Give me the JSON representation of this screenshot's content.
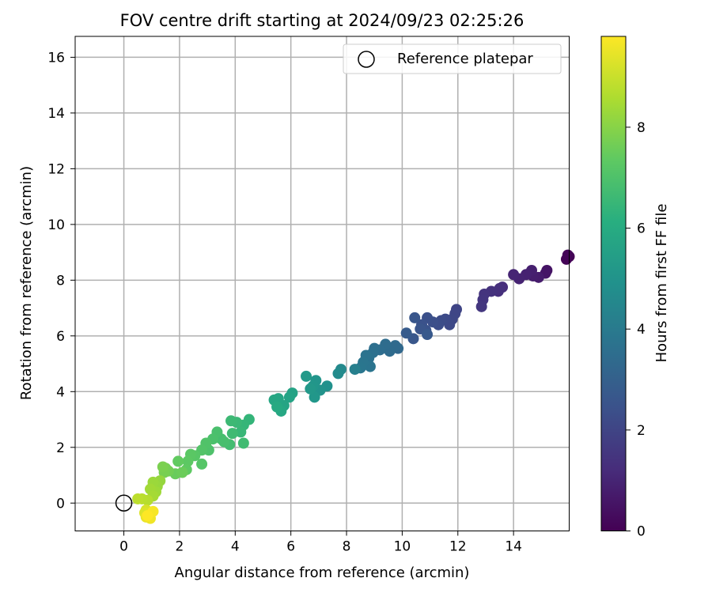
{
  "chart_data": {
    "type": "scatter",
    "title": "FOV centre drift starting at 2024/09/23 02:25:26",
    "xlabel": "Angular distance from reference (arcmin)",
    "ylabel": "Rotation from reference (arcmin)",
    "xlim": [
      -1.75,
      16
    ],
    "ylim": [
      -1,
      16.75
    ],
    "xticks": [
      0,
      2,
      4,
      6,
      8,
      10,
      12,
      14
    ],
    "yticks": [
      0,
      2,
      4,
      6,
      8,
      10,
      12,
      14,
      16
    ],
    "grid": true,
    "legend": {
      "placement": "top-right",
      "entries": [
        {
          "label": "Reference platepar",
          "marker": "open-circle"
        }
      ]
    },
    "reference_point": {
      "x": 0,
      "y": 0
    },
    "colorbar": {
      "label": "Hours from first FF file",
      "range": [
        0,
        9.8
      ],
      "ticks": [
        0,
        2,
        4,
        6,
        8
      ],
      "colormap": "viridis"
    },
    "series": [
      {
        "color_by": "hours",
        "points": [
          [
            16.0,
            8.85,
            0.0
          ],
          [
            15.9,
            8.75,
            0.05
          ],
          [
            15.95,
            8.9,
            0.1
          ],
          [
            15.2,
            8.35,
            0.5
          ],
          [
            15.15,
            8.25,
            0.55
          ],
          [
            14.9,
            8.1,
            0.75
          ],
          [
            14.7,
            8.15,
            0.8
          ],
          [
            14.65,
            8.35,
            0.85
          ],
          [
            14.45,
            8.2,
            0.9
          ],
          [
            14.2,
            8.05,
            0.95
          ],
          [
            14.0,
            8.2,
            1.0
          ],
          [
            13.6,
            7.75,
            1.25
          ],
          [
            13.45,
            7.6,
            1.3
          ],
          [
            13.5,
            7.7,
            1.32
          ],
          [
            13.2,
            7.6,
            1.4
          ],
          [
            12.95,
            7.5,
            1.45
          ],
          [
            12.9,
            7.3,
            1.5
          ],
          [
            12.85,
            7.05,
            1.55
          ],
          [
            11.95,
            6.95,
            2.0
          ],
          [
            11.9,
            6.8,
            2.05
          ],
          [
            11.8,
            6.6,
            2.1
          ],
          [
            11.7,
            6.4,
            2.15
          ],
          [
            11.55,
            6.6,
            2.2
          ],
          [
            11.4,
            6.55,
            2.25
          ],
          [
            11.3,
            6.4,
            2.3
          ],
          [
            11.1,
            6.5,
            2.35
          ],
          [
            10.9,
            6.65,
            2.4
          ],
          [
            10.7,
            6.4,
            2.45
          ],
          [
            10.85,
            6.2,
            2.5
          ],
          [
            10.65,
            6.25,
            2.55
          ],
          [
            10.45,
            6.65,
            2.6
          ],
          [
            10.4,
            5.9,
            2.65
          ],
          [
            10.9,
            6.05,
            2.7
          ],
          [
            10.15,
            6.1,
            2.8
          ],
          [
            9.85,
            5.55,
            3.3
          ],
          [
            9.75,
            5.65,
            3.35
          ],
          [
            9.55,
            5.45,
            3.4
          ],
          [
            9.4,
            5.7,
            3.45
          ],
          [
            9.2,
            5.5,
            3.5
          ],
          [
            9.0,
            5.55,
            3.55
          ],
          [
            8.95,
            5.4,
            3.6
          ],
          [
            8.8,
            5.2,
            3.65
          ],
          [
            8.7,
            5.3,
            3.7
          ],
          [
            8.85,
            4.9,
            3.75
          ],
          [
            8.6,
            5.05,
            3.8
          ],
          [
            8.5,
            4.85,
            3.85
          ],
          [
            8.3,
            4.8,
            4.2
          ],
          [
            7.8,
            4.8,
            4.6
          ],
          [
            7.7,
            4.65,
            4.65
          ],
          [
            7.3,
            4.2,
            4.9
          ],
          [
            7.05,
            4.05,
            5.0
          ],
          [
            6.9,
            4.4,
            5.05
          ],
          [
            6.8,
            4.2,
            5.1
          ],
          [
            6.85,
            3.8,
            5.15
          ],
          [
            6.7,
            4.1,
            5.2
          ],
          [
            6.55,
            4.55,
            5.25
          ],
          [
            6.05,
            3.95,
            5.6
          ],
          [
            5.95,
            3.8,
            5.65
          ],
          [
            5.75,
            3.5,
            5.7
          ],
          [
            5.55,
            3.75,
            5.75
          ],
          [
            5.4,
            3.7,
            5.8
          ],
          [
            5.65,
            3.3,
            5.85
          ],
          [
            5.5,
            3.45,
            5.9
          ],
          [
            4.5,
            3.0,
            6.4
          ],
          [
            4.3,
            2.8,
            6.45
          ],
          [
            4.2,
            2.55,
            6.5
          ],
          [
            4.05,
            2.9,
            6.55
          ],
          [
            3.85,
            2.95,
            6.6
          ],
          [
            3.9,
            2.5,
            6.65
          ],
          [
            4.3,
            2.15,
            6.7
          ],
          [
            3.8,
            2.1,
            6.75
          ],
          [
            3.5,
            2.3,
            6.8
          ],
          [
            3.6,
            2.2,
            6.85
          ],
          [
            3.35,
            2.55,
            6.9
          ],
          [
            3.2,
            2.3,
            6.95
          ],
          [
            3.05,
            1.9,
            7.0
          ],
          [
            2.95,
            2.15,
            7.05
          ],
          [
            2.8,
            1.9,
            7.1
          ],
          [
            2.8,
            1.4,
            7.15
          ],
          [
            2.55,
            1.7,
            7.2
          ],
          [
            2.4,
            1.75,
            7.25
          ],
          [
            2.3,
            1.5,
            7.3
          ],
          [
            2.25,
            1.2,
            7.35
          ],
          [
            1.95,
            1.5,
            7.4
          ],
          [
            1.85,
            1.05,
            7.5
          ],
          [
            2.1,
            1.1,
            7.55
          ],
          [
            1.6,
            1.15,
            7.65
          ],
          [
            1.5,
            1.25,
            7.7
          ],
          [
            1.45,
            1.1,
            7.75
          ],
          [
            1.4,
            1.3,
            7.8
          ],
          [
            1.3,
            0.8,
            8.2
          ],
          [
            1.2,
            0.6,
            8.25
          ],
          [
            1.05,
            0.75,
            8.3
          ],
          [
            1.15,
            0.4,
            8.35
          ],
          [
            0.95,
            0.5,
            8.4
          ],
          [
            1.05,
            0.25,
            8.45
          ],
          [
            0.85,
            0.1,
            8.7
          ],
          [
            0.65,
            0.15,
            8.75
          ],
          [
            0.5,
            0.15,
            8.8
          ],
          [
            0.8,
            -0.25,
            9.2
          ],
          [
            0.75,
            -0.35,
            9.3
          ],
          [
            0.95,
            -0.4,
            9.4
          ],
          [
            0.8,
            -0.5,
            9.5
          ],
          [
            0.95,
            -0.55,
            9.6
          ],
          [
            1.05,
            -0.3,
            9.7
          ],
          [
            0.85,
            -0.45,
            9.8
          ]
        ]
      }
    ]
  }
}
